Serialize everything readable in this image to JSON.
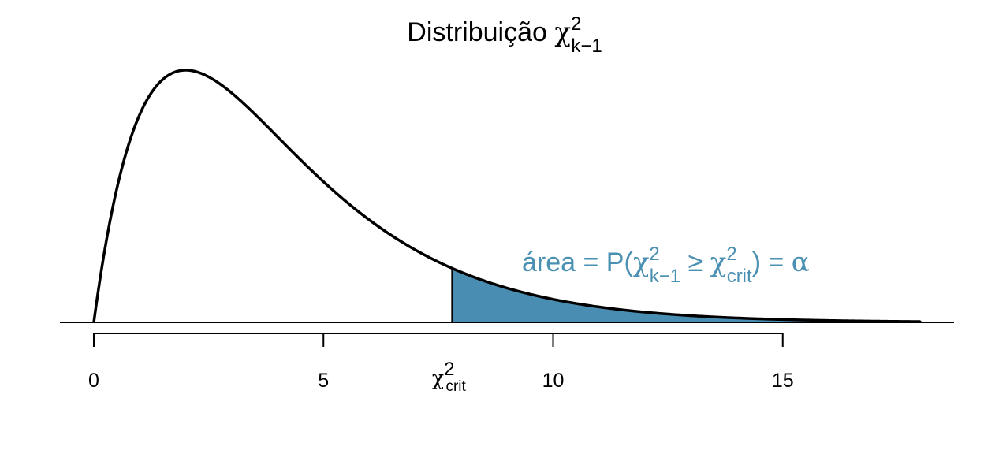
{
  "chart_data": {
    "type": "area",
    "title": {
      "text": "Distribuição ",
      "symbol": "χ",
      "superscript": "2",
      "subscript": "k−1"
    },
    "distribution": "chi-square",
    "degrees_of_freedom": 4,
    "xlim": [
      0,
      18
    ],
    "x_ticks": [
      {
        "value": 0,
        "label": "0"
      },
      {
        "value": 5,
        "label": "5"
      },
      {
        "value": 10,
        "label": "10"
      },
      {
        "value": 15,
        "label": "15"
      }
    ],
    "critical_value": {
      "value": 7.8,
      "label_symbol": "χ",
      "label_superscript": "2",
      "label_subscript": "crit"
    },
    "shaded_region": {
      "from": 7.8,
      "to": 18
    },
    "annotation": {
      "prefix": "área = P(",
      "chi1_sup": "2",
      "chi1_sub": "k−1",
      "relation": " ≥ ",
      "chi2_sup": "2",
      "chi2_sub": "crit",
      "suffix": ") = ",
      "alpha": "α",
      "color": "#4a90b2"
    },
    "colors": {
      "curve": "#000000",
      "shade": "#4a8db3",
      "axis": "#000000"
    },
    "legend": "none",
    "grid": false
  }
}
